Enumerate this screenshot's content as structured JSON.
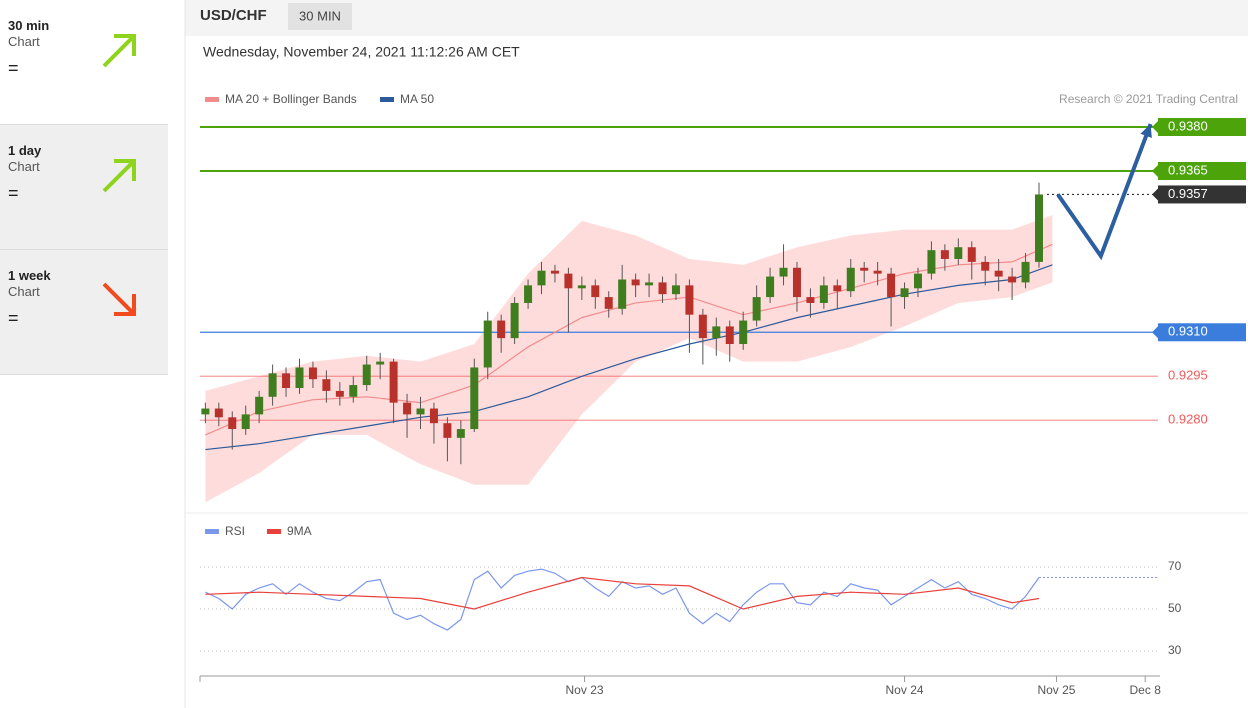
{
  "sidebar": [
    {
      "period": "30 min",
      "label": "Chart",
      "status": "="
    },
    {
      "period": "1 day",
      "label": "Chart",
      "status": "="
    },
    {
      "period": "1 week",
      "label": "Chart",
      "status": "="
    }
  ],
  "header": {
    "symbol": "USD/CHF",
    "interval": "30 MIN",
    "timestamp": "Wednesday, November 24, 2021 11:12:26 AM CET"
  },
  "chart_data": [
    {
      "type": "candlestick",
      "credit": "Research © 2021 Trading Central",
      "up_color": "#3f7d1f",
      "down_color": "#b8312b",
      "xlim": [
        -0.4,
        71
      ],
      "ylim": [
        0.92511,
        0.93858
      ],
      "ohlc": [
        [
          0.9282,
          0.9286,
          0.9279,
          0.9284
        ],
        [
          0.9284,
          0.9286,
          0.9278,
          0.9281
        ],
        [
          0.9281,
          0.9283,
          0.927,
          0.9277
        ],
        [
          0.9277,
          0.9285,
          0.9275,
          0.9282
        ],
        [
          0.9282,
          0.929,
          0.9279,
          0.9288
        ],
        [
          0.9288,
          0.9299,
          0.9285,
          0.9296
        ],
        [
          0.9296,
          0.9298,
          0.9288,
          0.9291
        ],
        [
          0.9291,
          0.9301,
          0.9289,
          0.9298
        ],
        [
          0.9298,
          0.93,
          0.9291,
          0.9294
        ],
        [
          0.9294,
          0.9297,
          0.9286,
          0.929
        ],
        [
          0.929,
          0.9293,
          0.9285,
          0.9288
        ],
        [
          0.9288,
          0.9295,
          0.9286,
          0.9292
        ],
        [
          0.9292,
          0.9302,
          0.929,
          0.9299
        ],
        [
          0.9299,
          0.9303,
          0.9294,
          0.93
        ],
        [
          0.93,
          0.9301,
          0.9279,
          0.9286
        ],
        [
          0.9286,
          0.9289,
          0.9274,
          0.9282
        ],
        [
          0.9282,
          0.9288,
          0.9277,
          0.9284
        ],
        [
          0.9284,
          0.9286,
          0.9272,
          0.9279
        ],
        [
          0.9279,
          0.9281,
          0.9266,
          0.9274
        ],
        [
          0.9274,
          0.928,
          0.9265,
          0.9277
        ],
        [
          0.9277,
          0.9301,
          0.9276,
          0.9298
        ],
        [
          0.9298,
          0.9317,
          0.9294,
          0.9314
        ],
        [
          0.9314,
          0.9316,
          0.9303,
          0.9308
        ],
        [
          0.9308,
          0.9322,
          0.9306,
          0.932
        ],
        [
          0.932,
          0.9328,
          0.9318,
          0.9326
        ],
        [
          0.9326,
          0.9334,
          0.9323,
          0.9331
        ],
        [
          0.9331,
          0.9333,
          0.9327,
          0.933
        ],
        [
          0.933,
          0.9332,
          0.931,
          0.9325
        ],
        [
          0.9325,
          0.9329,
          0.9321,
          0.9326
        ],
        [
          0.9326,
          0.9328,
          0.9318,
          0.9322
        ],
        [
          0.9322,
          0.9324,
          0.9315,
          0.9318
        ],
        [
          0.9318,
          0.9333,
          0.9316,
          0.9328
        ],
        [
          0.9328,
          0.933,
          0.9322,
          0.9326
        ],
        [
          0.9326,
          0.933,
          0.9322,
          0.9327
        ],
        [
          0.9327,
          0.9329,
          0.932,
          0.9323
        ],
        [
          0.9323,
          0.933,
          0.9321,
          0.9326
        ],
        [
          0.9326,
          0.9328,
          0.9303,
          0.9316
        ],
        [
          0.9316,
          0.9318,
          0.9299,
          0.9308
        ],
        [
          0.9308,
          0.9315,
          0.9302,
          0.9312
        ],
        [
          0.9312,
          0.9314,
          0.93,
          0.9306
        ],
        [
          0.9306,
          0.9317,
          0.9304,
          0.9314
        ],
        [
          0.9314,
          0.9326,
          0.9312,
          0.9322
        ],
        [
          0.9322,
          0.9332,
          0.932,
          0.9329
        ],
        [
          0.9329,
          0.934,
          0.9326,
          0.9332
        ],
        [
          0.9332,
          0.9334,
          0.9317,
          0.9322
        ],
        [
          0.9322,
          0.9325,
          0.9315,
          0.932
        ],
        [
          0.932,
          0.9329,
          0.9318,
          0.9326
        ],
        [
          0.9326,
          0.9328,
          0.9318,
          0.9324
        ],
        [
          0.9324,
          0.9335,
          0.9322,
          0.9332
        ],
        [
          0.9332,
          0.9334,
          0.9327,
          0.9331
        ],
        [
          0.9331,
          0.9334,
          0.9326,
          0.933
        ],
        [
          0.933,
          0.9332,
          0.9312,
          0.9322
        ],
        [
          0.9322,
          0.9327,
          0.9318,
          0.9325
        ],
        [
          0.9325,
          0.9332,
          0.9322,
          0.933
        ],
        [
          0.933,
          0.9341,
          0.9328,
          0.9338
        ],
        [
          0.9338,
          0.934,
          0.9331,
          0.9335
        ],
        [
          0.9335,
          0.9342,
          0.9333,
          0.9339
        ],
        [
          0.9339,
          0.9341,
          0.9328,
          0.9334
        ],
        [
          0.9334,
          0.9336,
          0.9326,
          0.9331
        ],
        [
          0.9331,
          0.9335,
          0.9324,
          0.9329
        ],
        [
          0.9329,
          0.9332,
          0.9321,
          0.9327
        ],
        [
          0.9327,
          0.9337,
          0.9325,
          0.9334
        ],
        [
          0.9334,
          0.9361,
          0.9332,
          0.9357
        ]
      ],
      "series": [
        {
          "name": "MA 20 + Bollinger Bands",
          "color": "#f28b8b",
          "x": [
            0,
            4,
            8,
            12,
            16,
            20,
            24,
            28,
            32,
            36,
            40,
            44,
            48,
            52,
            56,
            60,
            63
          ],
          "values": [
            0.9275,
            0.9283,
            0.9287,
            0.9288,
            0.9286,
            0.9292,
            0.9305,
            0.9315,
            0.932,
            0.9322,
            0.9316,
            0.932,
            0.9325,
            0.933,
            0.9333,
            0.9334,
            0.934
          ]
        },
        {
          "name": "MA 50",
          "color": "#2c5a9b",
          "x": [
            0,
            4,
            8,
            12,
            16,
            20,
            24,
            28,
            32,
            36,
            40,
            44,
            48,
            52,
            56,
            60,
            63
          ],
          "values": [
            0.927,
            0.9272,
            0.9275,
            0.9278,
            0.9281,
            0.9283,
            0.9288,
            0.9295,
            0.9301,
            0.9306,
            0.931,
            0.9315,
            0.9319,
            0.9323,
            0.9326,
            0.9328,
            0.9333
          ]
        }
      ],
      "bands": {
        "color": "#ffdcdc",
        "x": [
          0,
          4,
          8,
          12,
          16,
          20,
          24,
          28,
          32,
          36,
          40,
          44,
          48,
          52,
          56,
          60,
          63
        ],
        "upper": [
          0.929,
          0.9295,
          0.93,
          0.9302,
          0.93,
          0.9306,
          0.933,
          0.9348,
          0.9343,
          0.9335,
          0.9333,
          0.9339,
          0.9343,
          0.9345,
          0.9345,
          0.9345,
          0.935
        ],
        "lower": [
          0.9252,
          0.9262,
          0.9275,
          0.9275,
          0.9265,
          0.9258,
          0.9258,
          0.9282,
          0.93,
          0.9308,
          0.93,
          0.93,
          0.9305,
          0.9312,
          0.932,
          0.9322,
          0.9327
        ]
      },
      "levels": [
        {
          "value": 0.938,
          "label": "0.9380",
          "color": "#4ca30a",
          "style": "box",
          "line": "solid"
        },
        {
          "value": 0.9365,
          "label": "0.9365",
          "color": "#4ca30a",
          "style": "box",
          "line": "solid"
        },
        {
          "value": 0.9357,
          "label": "0.9357",
          "color": "#333333",
          "style": "box",
          "line": "dotted"
        },
        {
          "value": 0.931,
          "label": "0.9310",
          "color": "#3b7ddd",
          "style": "box",
          "line": "solid"
        },
        {
          "value": 0.9295,
          "label": "0.9295",
          "color": "#f25a5a",
          "style": "text",
          "line": "solid"
        },
        {
          "value": 0.928,
          "label": "0.9280",
          "color": "#f25a5a",
          "style": "text",
          "line": "solid"
        }
      ],
      "forecast": {
        "color": "#2d5fa0",
        "x": [
          63.4,
          66.6,
          70.3
        ],
        "values": [
          0.9357,
          0.9336,
          0.9381
        ]
      }
    },
    {
      "type": "line",
      "xlim": [
        -0.4,
        71
      ],
      "ylim": [
        20,
        80
      ],
      "yticks": [
        30,
        50,
        70
      ],
      "xticks": [
        {
          "value": 28.2,
          "label": "Nov 23"
        },
        {
          "value": 52,
          "label": "Nov 24"
        },
        {
          "value": 63.3,
          "label": "Nov 25"
        },
        {
          "value": 69.9,
          "label": "Dec 8"
        }
      ],
      "series": [
        {
          "name": "RSI",
          "color": "#7b97ec",
          "values": [
            58,
            55,
            50,
            57,
            60,
            62,
            57,
            62,
            58,
            55,
            54,
            58,
            63,
            64,
            48,
            45,
            47,
            43,
            40,
            45,
            64,
            68,
            60,
            66,
            68,
            69,
            67,
            63,
            65,
            60,
            56,
            63,
            60,
            61,
            57,
            60,
            48,
            43,
            48,
            44,
            52,
            58,
            62,
            62,
            53,
            52,
            58,
            56,
            62,
            60,
            59,
            52,
            56,
            60,
            64,
            60,
            63,
            57,
            55,
            52,
            50,
            56,
            65
          ]
        },
        {
          "name": "9MA",
          "color": "#e8403a",
          "x": [
            0,
            4,
            8,
            12,
            16,
            20,
            24,
            28,
            32,
            36,
            40,
            44,
            48,
            52,
            56,
            60,
            62
          ],
          "values": [
            57,
            58,
            57,
            56,
            55,
            50,
            58,
            65,
            62,
            61,
            50,
            56,
            58,
            57,
            60,
            53,
            55
          ]
        }
      ]
    }
  ]
}
